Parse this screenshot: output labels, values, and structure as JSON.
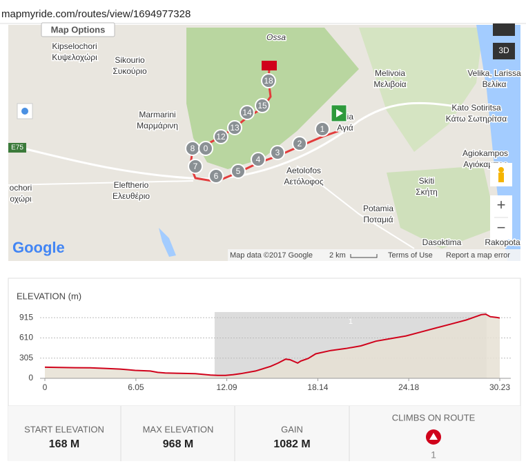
{
  "url": "mapmyride.com/routes/view/1694977328",
  "map": {
    "options_button": "Map Options",
    "view_button": "3D",
    "road": "E75",
    "logo": "Google",
    "attribution": "Map data ©2017 Google",
    "scale": "2 km",
    "terms": "Terms of Use",
    "report": "Report a map error",
    "zoom_in": "+",
    "zoom_out": "−",
    "places": [
      [
        "Ossa"
      ],
      [
        "Kipselochori",
        "Κυψελοχώρι"
      ],
      [
        "Sikourio",
        "Συκούριο"
      ],
      [
        "Marmarini",
        "Μαρμάρινη"
      ],
      [
        "Melivoia",
        "Μελιβοία"
      ],
      [
        "Velika, Larissa",
        "Βελίκα"
      ],
      [
        "Kato Sotiritsa",
        "Κάτω Σωτηρίτσα"
      ],
      [
        "Agia",
        "Αγιά"
      ],
      [
        "Aetolofos",
        "Αετόλοφος"
      ],
      [
        "Agiokampos",
        "Αγιόκαμπος"
      ],
      [
        "Skiti",
        "Σκήτη"
      ],
      [
        "Eleftherio",
        "Ελευθέριο"
      ],
      [
        "ochori",
        "οχώρι"
      ],
      [
        "Potamia",
        "Ποταμιά"
      ],
      [
        "Dasoktima"
      ],
      [
        "Rakopota"
      ]
    ],
    "markers": [
      "1",
      "2",
      "3",
      "4",
      "5",
      "6",
      "7",
      "8",
      "0",
      "12",
      "13",
      "14",
      "15",
      "18"
    ]
  },
  "chart_data": {
    "type": "area",
    "title": "ELEVATION (m)",
    "x": [
      0,
      1,
      2,
      3,
      4,
      5,
      5.5,
      6,
      7,
      7.5,
      8,
      9,
      10,
      10.5,
      11,
      11.5,
      12,
      12.5,
      13,
      14,
      15,
      15.5,
      16,
      16.3,
      16.8,
      17,
      17.5,
      18,
      19,
      20,
      21,
      22,
      23,
      24,
      25,
      26,
      27,
      28,
      28.5,
      29,
      29.3,
      29.6,
      30,
      30.23
    ],
    "values": [
      168,
      165,
      160,
      158,
      150,
      140,
      130,
      120,
      110,
      90,
      80,
      75,
      70,
      60,
      50,
      45,
      45,
      55,
      70,
      110,
      180,
      230,
      290,
      280,
      230,
      260,
      300,
      370,
      420,
      450,
      490,
      560,
      600,
      640,
      700,
      760,
      820,
      880,
      920,
      960,
      968,
      930,
      920,
      910
    ],
    "color": "#d0021b",
    "xlim": [
      0,
      30.23
    ],
    "xticks": [
      0,
      6.05,
      12.09,
      18.14,
      24.18,
      30.23
    ],
    "ylim": [
      0,
      1000
    ],
    "yticks": [
      0,
      305,
      610,
      915
    ],
    "grid": true,
    "climb": {
      "label": "1",
      "xlim": [
        11.28,
        29.36
      ]
    }
  },
  "stats": [
    {
      "label": "START ELEVATION",
      "value": "168 M"
    },
    {
      "label": "MAX ELEVATION",
      "value": "968 M"
    },
    {
      "label": "GAIN",
      "value": "1082 M"
    },
    {
      "label": "CLIMBS ON ROUTE",
      "value": "1"
    }
  ]
}
